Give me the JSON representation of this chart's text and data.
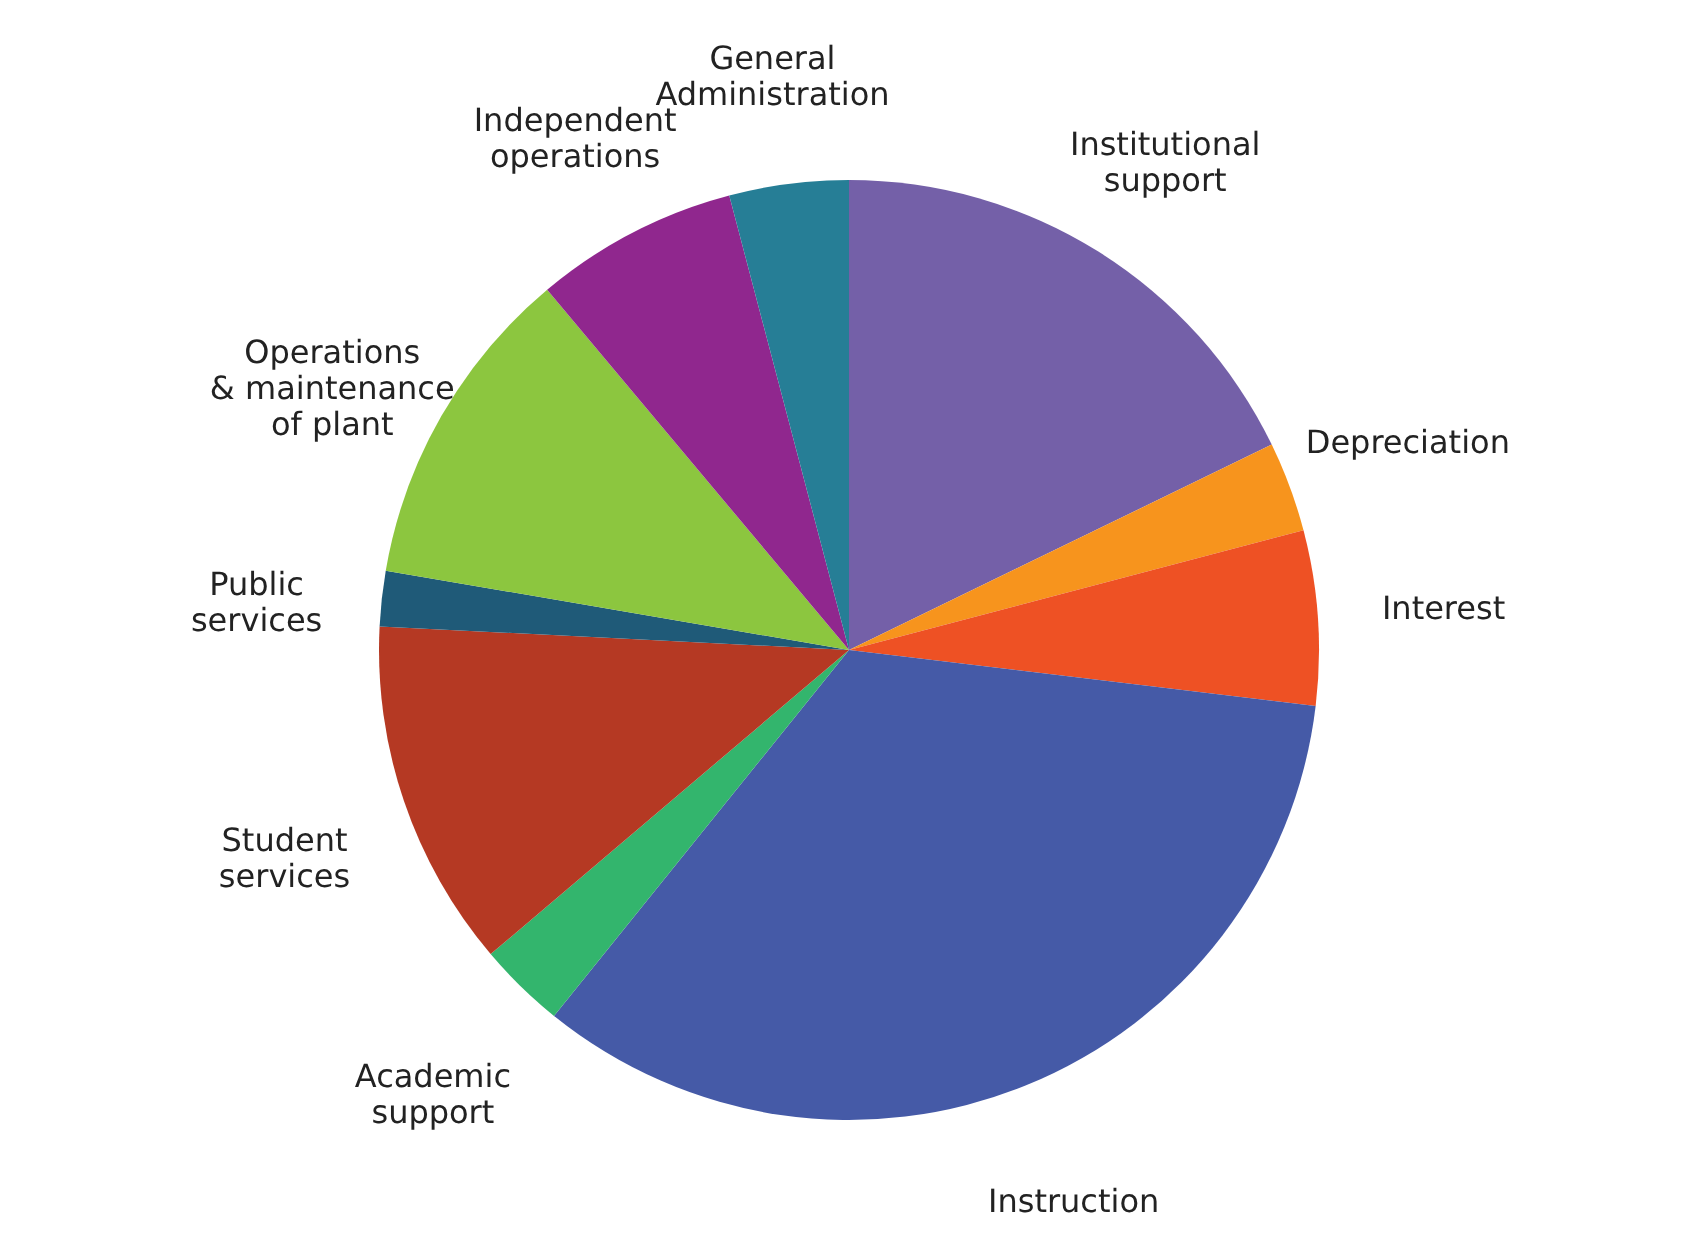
{
  "chart_data": {
    "type": "pie",
    "categories": [
      "Institutional\nsupport",
      "Depreciation",
      "Interest",
      "Instruction",
      "Academic\nsupport",
      "Student\nservices",
      "Public\nservices",
      "Operations\n& maintenance\nof plant",
      "Independent\noperations",
      "General\nAdministration"
    ],
    "values": [
      17.8,
      3.1,
      6.0,
      33.9,
      3.0,
      12.0,
      1.9,
      11.2,
      7.0,
      4.1
    ],
    "colors": [
      "#7460a8",
      "#f7941d",
      "#ee5124",
      "#455aa7",
      "#33b56d",
      "#b53923",
      "#1f5a78",
      "#8cc63f",
      "#90278e",
      "#267e96"
    ]
  }
}
